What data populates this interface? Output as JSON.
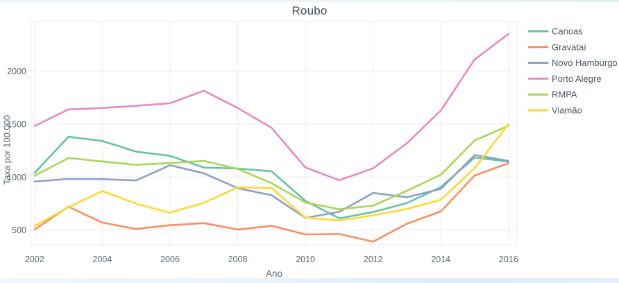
{
  "title": "Roubo",
  "chart_data": {
    "type": "line",
    "title": "Roubo",
    "xlabel": "Ano",
    "ylabel": "Taxa por 100.000",
    "x": [
      2002,
      2003,
      2004,
      2005,
      2006,
      2007,
      2008,
      2009,
      2010,
      2011,
      2012,
      2013,
      2014,
      2015,
      2016
    ],
    "series": [
      {
        "name": "Canoas",
        "color": "#66c2a5",
        "values": [
          1040,
          1380,
          1340,
          1240,
          1200,
          1090,
          1080,
          1055,
          775,
          610,
          670,
          755,
          905,
          1185,
          1145
        ]
      },
      {
        "name": "Gravataí",
        "color": "#fc8d62",
        "values": [
          505,
          720,
          570,
          510,
          545,
          565,
          505,
          540,
          458,
          462,
          390,
          560,
          675,
          1015,
          1130
        ]
      },
      {
        "name": "Novo Hamburgo",
        "color": "#8da0cb",
        "values": [
          958,
          983,
          980,
          968,
          1112,
          1035,
          895,
          828,
          615,
          672,
          850,
          810,
          888,
          1208,
          1152
        ]
      },
      {
        "name": "Porto Alegre",
        "color": "#e78ac3",
        "values": [
          1483,
          1638,
          1652,
          1672,
          1697,
          1815,
          1652,
          1465,
          1090,
          970,
          1082,
          1320,
          1628,
          2110,
          2352
        ]
      },
      {
        "name": "RMPA",
        "color": "#a6d854",
        "values": [
          1012,
          1180,
          1147,
          1115,
          1133,
          1152,
          1077,
          942,
          760,
          696,
          730,
          871,
          1022,
          1345,
          1484
        ]
      },
      {
        "name": "Viamão",
        "color": "#ffd92f",
        "values": [
          537,
          715,
          868,
          748,
          663,
          756,
          903,
          896,
          618,
          590,
          638,
          700,
          785,
          1085,
          1500
        ]
      }
    ],
    "xticks": [
      2002,
      2004,
      2006,
      2008,
      2010,
      2012,
      2014,
      2016
    ],
    "yticks": [
      500,
      1000,
      1500,
      2000
    ],
    "xlim": [
      2001.9,
      2016.25
    ],
    "ylim": [
      360,
      2475
    ],
    "grid": true,
    "legend_position": "top-right"
  },
  "colors": {
    "grid": "#ececec",
    "tick_text": "#5c6775",
    "title_text": "#414b5a",
    "legend_text": "#4c5766"
  }
}
